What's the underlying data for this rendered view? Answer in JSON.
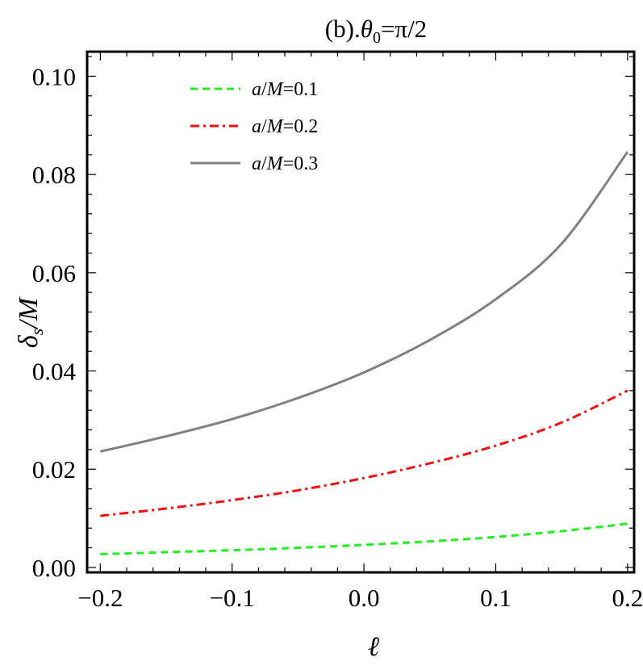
{
  "chart_data": {
    "type": "line",
    "title": "(b).θ0=π/2",
    "title_parts": {
      "pre": "(b).",
      "sym": "θ",
      "sub": "0",
      "post": "=π/2"
    },
    "xlabel": "ℓ",
    "ylabel": {
      "sym": "δ",
      "sub": "s",
      "post": "/M"
    },
    "xlim": [
      -0.21,
      0.205
    ],
    "ylim": [
      -0.001,
      0.105
    ],
    "xticks": [
      -0.2,
      -0.1,
      0.0,
      0.1,
      0.2
    ],
    "xtick_labels": [
      "−0.2",
      "−0.1",
      "0.0",
      "0.1",
      "0.2"
    ],
    "yticks": [
      0.0,
      0.02,
      0.04,
      0.06,
      0.08,
      0.1
    ],
    "ytick_labels": [
      "0.00",
      "0.02",
      "0.04",
      "0.06",
      "0.08",
      "0.10"
    ],
    "grid": false,
    "legend_position": "top-left",
    "x": [
      -0.2,
      -0.15,
      -0.1,
      -0.05,
      0.0,
      0.05,
      0.1,
      0.15,
      0.2
    ],
    "series": [
      {
        "name": "a/M=0.1",
        "legend_parts": {
          "a": "a",
          "m": "M",
          "val": "=0.1"
        },
        "color": "#22ee22",
        "dash": "dashed",
        "values": [
          0.0027,
          0.0031,
          0.0035,
          0.004,
          0.0046,
          0.0053,
          0.0062,
          0.0074,
          0.0089
        ]
      },
      {
        "name": "a/M=0.2",
        "legend_parts": {
          "a": "a",
          "m": "M",
          "val": "=0.2"
        },
        "color": "#ee1111",
        "dash": "dashdot",
        "values": [
          0.0105,
          0.012,
          0.0137,
          0.0157,
          0.0182,
          0.0212,
          0.0248,
          0.0295,
          0.036
        ]
      },
      {
        "name": "a/M=0.3",
        "legend_parts": {
          "a": "a",
          "m": "M",
          "val": "=0.3"
        },
        "color": "#808080",
        "dash": "solid",
        "values": [
          0.0236,
          0.0267,
          0.0302,
          0.0345,
          0.0397,
          0.0463,
          0.0546,
          0.0659,
          0.0846
        ]
      }
    ]
  }
}
